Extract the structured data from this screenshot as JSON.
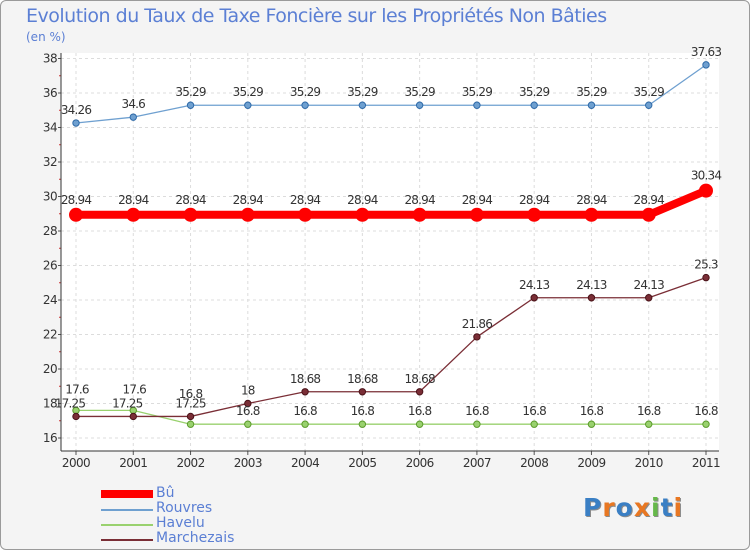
{
  "title": "Evolution du Taux de Taxe Foncière sur les Propriétés Non Bâties",
  "unit_label": "(en %)",
  "logo": {
    "text": "Proxiti",
    "letters": [
      {
        "ch": "P",
        "color": "#3a7fc4"
      },
      {
        "ch": "r",
        "color": "#e87722"
      },
      {
        "ch": "o",
        "color": "#3a7fc4"
      },
      {
        "ch": "x",
        "color": "#e87722"
      },
      {
        "ch": "i",
        "color": "#66b84a"
      },
      {
        "ch": "t",
        "color": "#3a7fc4"
      },
      {
        "ch": "i",
        "color": "#e87722"
      }
    ]
  },
  "chart_data": {
    "type": "line",
    "title": "Evolution du Taux de Taxe Foncière sur les Propriétés Non Bâties",
    "ylabel": "(en %)",
    "xlabel": "",
    "categories": [
      "2000",
      "2001",
      "2002",
      "2003",
      "2004",
      "2005",
      "2006",
      "2007",
      "2008",
      "2009",
      "2010",
      "2011"
    ],
    "ylim": [
      15.5,
      38.5
    ],
    "yticks": [
      16,
      18,
      20,
      22,
      24,
      26,
      28,
      30,
      32,
      34,
      36,
      38
    ],
    "grid": true,
    "legend_position": "bottom-left",
    "series": [
      {
        "name": "Bû",
        "color": "#ff0000",
        "emphasis": true,
        "values": [
          28.94,
          28.94,
          28.94,
          28.94,
          28.94,
          28.94,
          28.94,
          28.94,
          28.94,
          28.94,
          28.94,
          30.34
        ],
        "labels": [
          "28.94",
          "28.94",
          "28.94",
          "28.94",
          "28.94",
          "28.94",
          "28.94",
          "28.94",
          "28.94",
          "28.94",
          "28.94",
          "30.34"
        ]
      },
      {
        "name": "Rouvres",
        "color": "#6fa0d0",
        "emphasis": false,
        "values": [
          34.26,
          34.6,
          35.29,
          35.29,
          35.29,
          35.29,
          35.29,
          35.29,
          35.29,
          35.29,
          35.29,
          37.63
        ],
        "labels": [
          "34.26",
          "34.6",
          "35.29",
          "35.29",
          "35.29",
          "35.29",
          "35.29",
          "35.29",
          "35.29",
          "35.29",
          "35.29",
          "37.63"
        ]
      },
      {
        "name": "Havelu",
        "color": "#99d16e",
        "emphasis": false,
        "values": [
          17.6,
          17.6,
          16.8,
          16.8,
          16.8,
          16.8,
          16.8,
          16.8,
          16.8,
          16.8,
          16.8,
          16.8
        ],
        "labels": [
          "17.6",
          "17.6",
          "16.8",
          "16.8",
          "16.8",
          "16.8",
          "16.8",
          "16.8",
          "16.8",
          "16.8",
          "16.8",
          "16.8"
        ]
      },
      {
        "name": "Marchezais",
        "color": "#7a2e36",
        "emphasis": false,
        "values": [
          17.25,
          17.25,
          17.25,
          18,
          18.68,
          18.68,
          18.68,
          21.86,
          24.13,
          24.13,
          24.13,
          25.3
        ],
        "labels": [
          "17.25",
          "17.25",
          "17.25",
          "18",
          "18.68",
          "18.68",
          "18.68",
          "21.86",
          "24.13",
          "24.13",
          "24.13",
          "25.3"
        ]
      }
    ]
  }
}
